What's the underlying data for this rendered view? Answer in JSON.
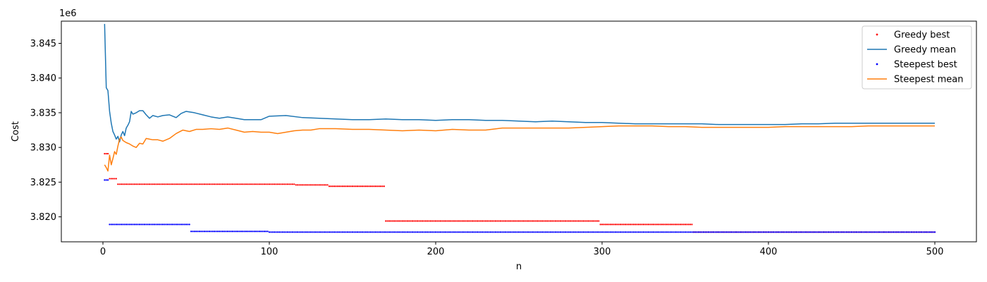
{
  "chart_data": {
    "type": "line",
    "title": "",
    "xlabel": "n",
    "ylabel": "Cost",
    "y_offset_label": "1e6",
    "xlim": [
      -25,
      525
    ],
    "ylim": [
      3.8164,
      3.8482
    ],
    "x_ticks": [
      0,
      100,
      200,
      300,
      400,
      500
    ],
    "x_tick_labels": [
      "0",
      "100",
      "200",
      "300",
      "400",
      "500"
    ],
    "y_ticks": [
      3.82,
      3.825,
      3.83,
      3.835,
      3.84,
      3.845
    ],
    "y_tick_labels": [
      "3.820",
      "3.825",
      "3.830",
      "3.835",
      "3.840",
      "3.845"
    ],
    "grid": false,
    "legend_position": "top-right",
    "series": [
      {
        "name": "Greedy best",
        "kind": "points",
        "color": "#ff0000",
        "step_segments": [
          [
            1,
            3,
            3.8291
          ],
          [
            4,
            8,
            3.8255
          ],
          [
            9,
            115,
            3.8247
          ],
          [
            116,
            135,
            3.8246
          ],
          [
            136,
            169,
            3.8244
          ],
          [
            170,
            298,
            3.8194
          ],
          [
            299,
            354,
            3.8189
          ],
          [
            355,
            500,
            3.8178
          ]
        ]
      },
      {
        "name": "Greedy mean",
        "kind": "line",
        "color": "#1f77b4",
        "points": [
          [
            1,
            3.8478
          ],
          [
            2,
            3.8386
          ],
          [
            3,
            3.8382
          ],
          [
            4,
            3.8352
          ],
          [
            5,
            3.8335
          ],
          [
            6,
            3.8323
          ],
          [
            7,
            3.8318
          ],
          [
            8,
            3.8312
          ],
          [
            9,
            3.8316
          ],
          [
            10,
            3.8308
          ],
          [
            11,
            3.8318
          ],
          [
            12,
            3.8323
          ],
          [
            13,
            3.8317
          ],
          [
            14,
            3.8328
          ],
          [
            15,
            3.8332
          ],
          [
            16,
            3.8337
          ],
          [
            17,
            3.8352
          ],
          [
            18,
            3.8348
          ],
          [
            20,
            3.835
          ],
          [
            22,
            3.8353
          ],
          [
            24,
            3.8353
          ],
          [
            26,
            3.8347
          ],
          [
            28,
            3.8342
          ],
          [
            30,
            3.8346
          ],
          [
            33,
            3.8344
          ],
          [
            36,
            3.8346
          ],
          [
            40,
            3.8347
          ],
          [
            44,
            3.8343
          ],
          [
            47,
            3.8349
          ],
          [
            50,
            3.8352
          ],
          [
            55,
            3.835
          ],
          [
            60,
            3.8347
          ],
          [
            65,
            3.8344
          ],
          [
            70,
            3.8342
          ],
          [
            75,
            3.8344
          ],
          [
            80,
            3.8342
          ],
          [
            85,
            3.834
          ],
          [
            90,
            3.834
          ],
          [
            95,
            3.834
          ],
          [
            100,
            3.8345
          ],
          [
            110,
            3.8346
          ],
          [
            120,
            3.8343
          ],
          [
            130,
            3.8342
          ],
          [
            140,
            3.8341
          ],
          [
            150,
            3.834
          ],
          [
            160,
            3.834
          ],
          [
            170,
            3.8341
          ],
          [
            180,
            3.834
          ],
          [
            190,
            3.834
          ],
          [
            200,
            3.8339
          ],
          [
            210,
            3.834
          ],
          [
            220,
            3.834
          ],
          [
            230,
            3.8339
          ],
          [
            240,
            3.8339
          ],
          [
            250,
            3.8338
          ],
          [
            260,
            3.8337
          ],
          [
            270,
            3.8338
          ],
          [
            280,
            3.8337
          ],
          [
            290,
            3.8336
          ],
          [
            300,
            3.8336
          ],
          [
            310,
            3.8335
          ],
          [
            320,
            3.8334
          ],
          [
            330,
            3.8334
          ],
          [
            340,
            3.8334
          ],
          [
            350,
            3.8334
          ],
          [
            360,
            3.8334
          ],
          [
            370,
            3.8333
          ],
          [
            380,
            3.8333
          ],
          [
            390,
            3.8333
          ],
          [
            400,
            3.8333
          ],
          [
            410,
            3.8333
          ],
          [
            420,
            3.8334
          ],
          [
            430,
            3.8334
          ],
          [
            440,
            3.8335
          ],
          [
            450,
            3.8335
          ],
          [
            460,
            3.8335
          ],
          [
            470,
            3.8335
          ],
          [
            480,
            3.8335
          ],
          [
            490,
            3.8335
          ],
          [
            500,
            3.8335
          ]
        ]
      },
      {
        "name": "Steepest best",
        "kind": "points",
        "color": "#0000ff",
        "step_segments": [
          [
            1,
            3,
            3.8253
          ],
          [
            4,
            52,
            3.8189
          ],
          [
            53,
            99,
            3.8179
          ],
          [
            100,
            500,
            3.8178
          ]
        ]
      },
      {
        "name": "Steepest mean",
        "kind": "line",
        "color": "#ff7f0e",
        "points": [
          [
            1,
            3.8275
          ],
          [
            2,
            3.8271
          ],
          [
            3,
            3.8266
          ],
          [
            4,
            3.8289
          ],
          [
            5,
            3.8275
          ],
          [
            6,
            3.8284
          ],
          [
            7,
            3.8294
          ],
          [
            8,
            3.829
          ],
          [
            9,
            3.8302
          ],
          [
            10,
            3.8312
          ],
          [
            11,
            3.8315
          ],
          [
            12,
            3.831
          ],
          [
            14,
            3.8307
          ],
          [
            16,
            3.8305
          ],
          [
            18,
            3.8302
          ],
          [
            20,
            3.83
          ],
          [
            22,
            3.8306
          ],
          [
            24,
            3.8305
          ],
          [
            26,
            3.8313
          ],
          [
            28,
            3.8312
          ],
          [
            30,
            3.8311
          ],
          [
            33,
            3.8311
          ],
          [
            36,
            3.8309
          ],
          [
            40,
            3.8313
          ],
          [
            44,
            3.832
          ],
          [
            48,
            3.8325
          ],
          [
            52,
            3.8323
          ],
          [
            56,
            3.8326
          ],
          [
            60,
            3.8326
          ],
          [
            65,
            3.8327
          ],
          [
            70,
            3.8326
          ],
          [
            75,
            3.8328
          ],
          [
            80,
            3.8325
          ],
          [
            85,
            3.8322
          ],
          [
            90,
            3.8323
          ],
          [
            95,
            3.8322
          ],
          [
            100,
            3.8322
          ],
          [
            105,
            3.832
          ],
          [
            110,
            3.8322
          ],
          [
            115,
            3.8324
          ],
          [
            120,
            3.8325
          ],
          [
            125,
            3.8325
          ],
          [
            130,
            3.8327
          ],
          [
            140,
            3.8327
          ],
          [
            150,
            3.8326
          ],
          [
            160,
            3.8326
          ],
          [
            170,
            3.8325
          ],
          [
            180,
            3.8324
          ],
          [
            190,
            3.8325
          ],
          [
            200,
            3.8324
          ],
          [
            210,
            3.8326
          ],
          [
            220,
            3.8325
          ],
          [
            230,
            3.8325
          ],
          [
            240,
            3.8328
          ],
          [
            250,
            3.8328
          ],
          [
            260,
            3.8328
          ],
          [
            270,
            3.8328
          ],
          [
            280,
            3.8328
          ],
          [
            290,
            3.8329
          ],
          [
            300,
            3.833
          ],
          [
            310,
            3.8331
          ],
          [
            320,
            3.8331
          ],
          [
            330,
            3.8331
          ],
          [
            340,
            3.833
          ],
          [
            350,
            3.833
          ],
          [
            360,
            3.8329
          ],
          [
            370,
            3.8329
          ],
          [
            380,
            3.8329
          ],
          [
            390,
            3.8329
          ],
          [
            400,
            3.8329
          ],
          [
            410,
            3.833
          ],
          [
            420,
            3.833
          ],
          [
            430,
            3.833
          ],
          [
            440,
            3.833
          ],
          [
            450,
            3.833
          ],
          [
            460,
            3.8331
          ],
          [
            470,
            3.8331
          ],
          [
            480,
            3.8331
          ],
          [
            490,
            3.8331
          ],
          [
            500,
            3.8331
          ]
        ]
      }
    ]
  }
}
